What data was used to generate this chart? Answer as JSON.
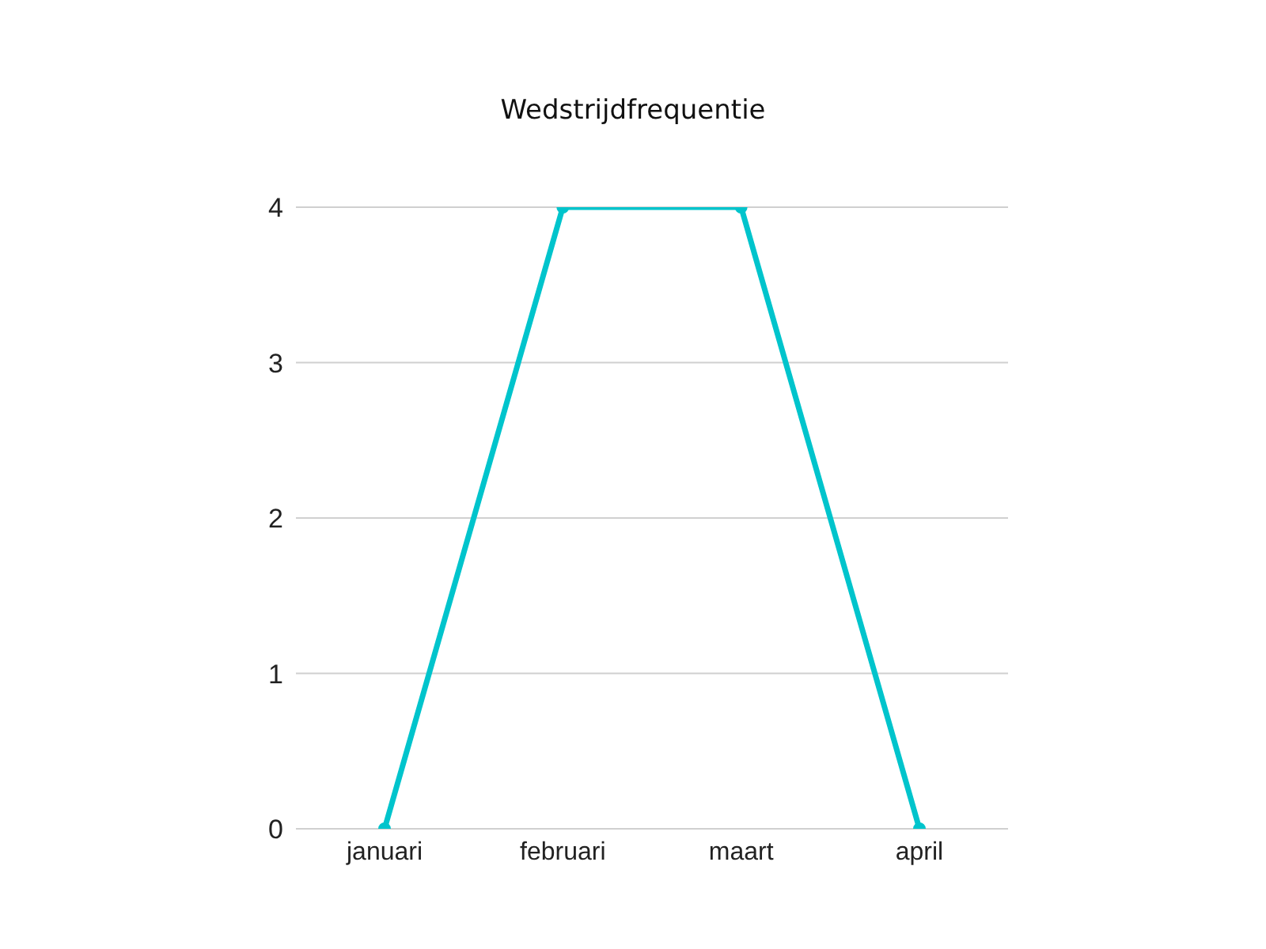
{
  "chart_data": {
    "type": "line",
    "title": "Wedstrijdfrequentie",
    "categories": [
      "januari",
      "februari",
      "maart",
      "april"
    ],
    "series": [
      {
        "color": "#00c4cc",
        "values": [
          0,
          4,
          4,
          0
        ]
      }
    ],
    "ylim": [
      0,
      4
    ],
    "yticks": [
      0,
      1,
      2,
      3,
      4
    ],
    "grid": "y",
    "marker": "circle",
    "line_style": "solid"
  }
}
